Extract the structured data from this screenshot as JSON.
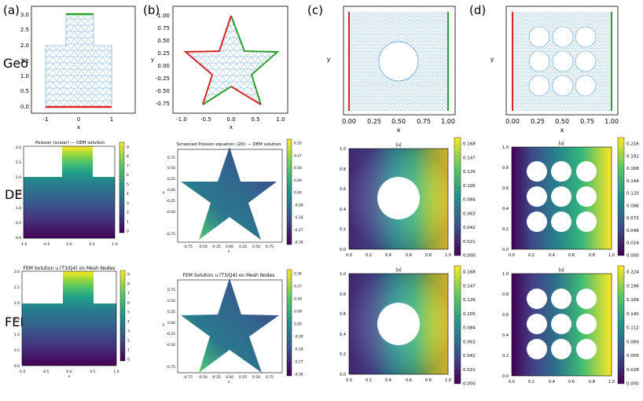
{
  "panel_labels": [
    "(a)",
    "(b)",
    "(c)",
    "(d)"
  ],
  "row_labels": [
    "Geo",
    "DEM",
    "FEM"
  ],
  "geo": {
    "a": {
      "xlabel": "x",
      "ylabel": "y",
      "xticks": [
        "-1",
        "0",
        "1"
      ],
      "yticks": [
        "0.0",
        "0.5",
        "1.0",
        "1.5",
        "2.0",
        "2.5",
        "3.0"
      ]
    },
    "b": {
      "xlabel": "x",
      "ylabel": "y",
      "xticks": [
        "-1.0",
        "-0.5",
        "0.0",
        "0.5",
        "1.0"
      ],
      "yticks": [
        "-0.75",
        "-0.50",
        "-0.25",
        "0.00",
        "0.25",
        "0.50",
        "0.75",
        "1.00"
      ]
    },
    "c": {
      "xlabel": "x",
      "ylabel": "y",
      "xticks": [
        "0.00",
        "0.25",
        "0.50",
        "0.75",
        "1.00"
      ]
    },
    "d": {
      "xlabel": "x",
      "ylabel": "y",
      "xticks": [
        "0.00",
        "0.25",
        "0.50",
        "0.75",
        "1.00"
      ]
    }
  },
  "dem": {
    "a": {
      "title": "Poisson (scalar) — DEM solution",
      "xticks": [
        "-1.0",
        "-0.5",
        "0.0",
        "0.5",
        "1.0"
      ],
      "yticks": [
        "0.0",
        "0.5",
        "1.0",
        "1.5",
        "2.0",
        "2.5",
        "3.0"
      ],
      "cbar": [
        "0",
        "1",
        "2",
        "3",
        "4",
        "5",
        "6",
        "7",
        "8",
        "9"
      ]
    },
    "b": {
      "title": "Screened Poisson equation (2D) — DEM solution",
      "xlabel": "x",
      "ylabel": "y",
      "xticks": [
        "-0.75",
        "-0.50",
        "-0.25",
        "0.00",
        "0.25",
        "0.50",
        "0.75"
      ],
      "yticks": [
        "-0.75",
        "-0.50",
        "-0.25",
        "0.00",
        "0.25",
        "0.50",
        "0.75",
        "1.00"
      ],
      "cbar": [
        "0.35",
        "0.27",
        "0.18",
        "0.09",
        "0.00",
        "-0.09",
        "-0.18",
        "-0.27",
        "-0.36"
      ]
    },
    "c": {
      "title": "|u|",
      "xticks": [
        "0.0",
        "0.2",
        "0.4",
        "0.6",
        "0.8",
        "1.0"
      ],
      "yticks": [
        "0.0",
        "0.2",
        "0.4",
        "0.6",
        "0.8",
        "1.0"
      ],
      "cbar": [
        "0.168",
        "0.147",
        "0.126",
        "0.105",
        "0.084",
        "0.063",
        "0.042",
        "0.021",
        "0.000"
      ]
    },
    "d": {
      "title": "|u|",
      "xticks": [
        "0.0",
        "0.2",
        "0.4",
        "0.6",
        "0.8",
        "1.0"
      ],
      "yticks": [
        "0.0",
        "0.2",
        "0.4",
        "0.6",
        "0.8",
        "1.0"
      ],
      "cbar": [
        "0.216",
        "0.192",
        "0.168",
        "0.144",
        "0.120",
        "0.096",
        "0.072",
        "0.048",
        "0.024",
        "0.000"
      ]
    }
  },
  "fem": {
    "a": {
      "title": "FEM Solution u (T3/Q4) on Mesh Nodes",
      "xlabel": "x",
      "xticks": [
        "-1.0",
        "-0.5",
        "0.0",
        "0.5",
        "1.0"
      ],
      "yticks": [
        "0.0",
        "0.5",
        "1.0",
        "1.5",
        "2.0",
        "2.5",
        "3.0"
      ],
      "cbar": [
        "0",
        "1",
        "2",
        "3",
        "4",
        "5",
        "6",
        "7",
        "8",
        "9"
      ]
    },
    "b": {
      "title": "FEM Solution u (T3/Q4) on Mesh Nodes",
      "xlabel": "x",
      "ylabel": "y",
      "xticks": [
        "-0.75",
        "-0.50",
        "-0.25",
        "0.00",
        "0.25",
        "0.50",
        "0.75"
      ],
      "yticks": [
        "-0.75",
        "-0.50",
        "-0.25",
        "0.00",
        "0.25",
        "0.50",
        "0.75",
        "1.00"
      ],
      "cbar": [
        "0.36",
        "0.27",
        "0.18",
        "0.09",
        "0.00",
        "-0.09",
        "-0.18",
        "-0.27",
        "-0.36"
      ]
    },
    "c": {
      "title": "|u|",
      "xticks": [
        "0.0",
        "0.2",
        "0.4",
        "0.6",
        "0.8",
        "1.0"
      ],
      "yticks": [
        "0.0",
        "0.2",
        "0.4",
        "0.6",
        "0.8",
        "1.0"
      ],
      "cbar": [
        "0.168",
        "0.147",
        "0.126",
        "0.105",
        "0.084",
        "0.063",
        "0.042",
        "0.021",
        "0.000"
      ]
    },
    "d": {
      "title": "|u|",
      "xticks": [
        "0.0",
        "0.2",
        "0.4",
        "0.6",
        "0.8",
        "1.0"
      ],
      "yticks": [
        "0.0",
        "0.2",
        "0.4",
        "0.6",
        "0.8",
        "1.0"
      ],
      "cbar": [
        "0.224",
        "0.196",
        "0.168",
        "0.140",
        "0.112",
        "0.084",
        "0.056",
        "0.028",
        "0.000"
      ]
    }
  },
  "colors": {
    "boundary_red": "#d62728",
    "boundary_green": "#2ca02c",
    "mesh": "#4f9ad4"
  }
}
